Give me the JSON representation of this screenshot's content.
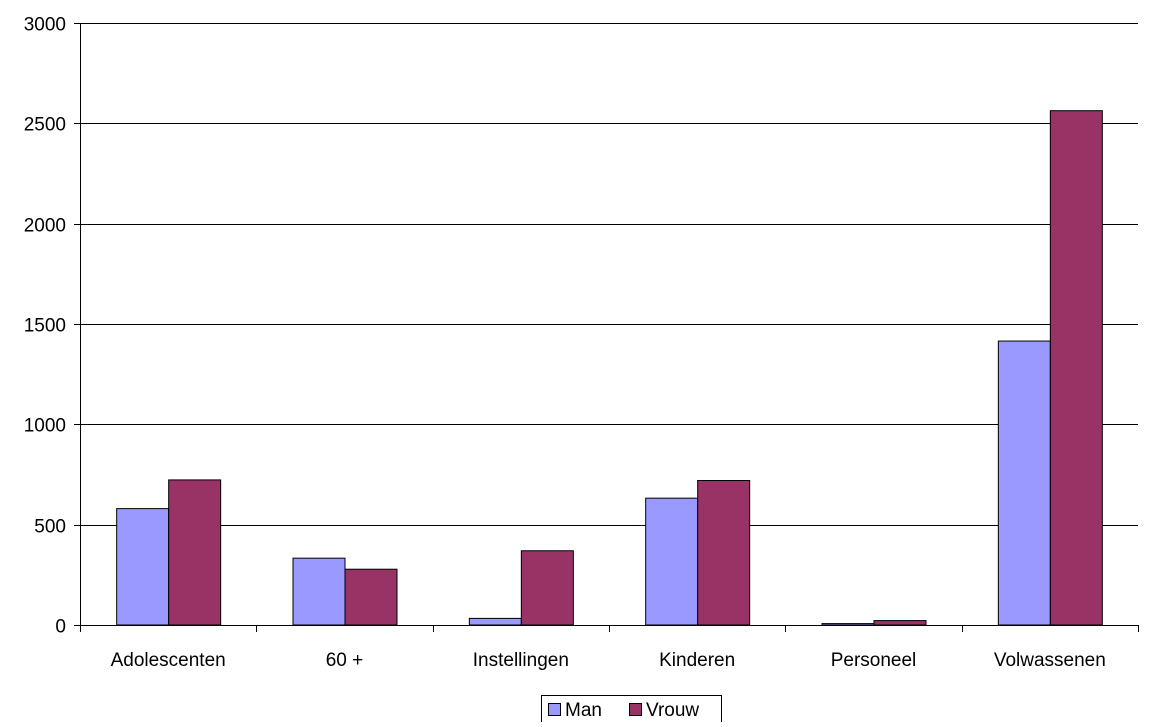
{
  "chart_data": {
    "type": "bar",
    "categories": [
      "Adolescenten",
      "60 +",
      "Instellingen",
      "Kinderen",
      "Personeel",
      "Volwassenen"
    ],
    "series": [
      {
        "name": "Man",
        "color": "#9999ff",
        "values": [
          580,
          333,
          33,
          632,
          7,
          1415
        ]
      },
      {
        "name": "Vrouw",
        "color": "#993366",
        "values": [
          723,
          278,
          370,
          720,
          22,
          2563
        ]
      }
    ],
    "title": "",
    "xlabel": "",
    "ylabel": "",
    "ylim": [
      0,
      3000
    ],
    "yticks": [
      "0",
      "500",
      "1000",
      "1500",
      "2000",
      "2500",
      "3000"
    ],
    "grid": true,
    "legend_position": "bottom-center"
  }
}
